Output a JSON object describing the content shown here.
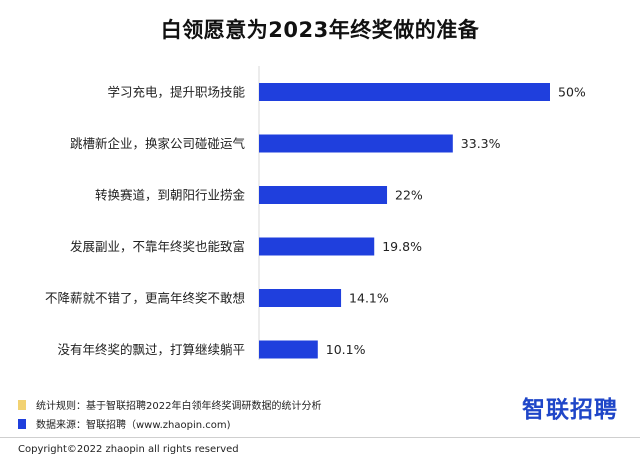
{
  "title": "白领愿意为2023年终奖做的准备",
  "chart_data": {
    "type": "bar",
    "orientation": "horizontal",
    "title": "白领愿意为2023年终奖做的准备",
    "xlabel": "",
    "ylabel": "",
    "xlim": [
      0,
      50
    ],
    "grid": false,
    "categories": [
      "学习充电，提升职场技能",
      "跳槽新企业，换家公司碰碰运气",
      "转换赛道，到朝阳行业捞金",
      "发展副业，不靠年终奖也能致富",
      "不降薪就不错了，更高年终奖不敢想",
      "没有年终奖的飘过，打算继续躺平"
    ],
    "values": [
      50,
      33.3,
      22,
      19.8,
      14.1,
      10.1
    ],
    "value_labels": [
      "50%",
      "33.3%",
      "22%",
      "19.8%",
      "14.1%",
      "10.1%"
    ],
    "bar_color": "#1f3fdd"
  },
  "notes": [
    {
      "text": "统计规则：基于智联招聘2022年白领年终奖调研数据的统计分析",
      "color": "#f2d272"
    },
    {
      "text": "数据来源：智联招聘（www.zhaopin.com)",
      "color": "#1f3fdd"
    }
  ],
  "brand": "智联招聘",
  "copyright": "Copyright©2022 zhaopin all rights reserved"
}
